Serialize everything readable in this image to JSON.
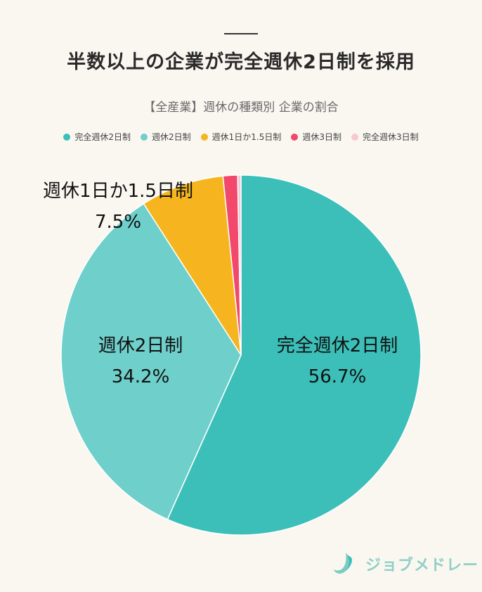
{
  "header": {
    "title": "半数以上の企業が完全週休2日制を採用",
    "subtitle": "【全産業】週休の種類別 企業の割合"
  },
  "chart_data": {
    "type": "pie",
    "categories": [
      "完全週休2日制",
      "週休2日制",
      "週休1日か1.5日制",
      "週休3日制",
      "完全週休3日制"
    ],
    "values": [
      56.7,
      34.2,
      7.5,
      1.3,
      0.3
    ],
    "value_labels": [
      "56.7%",
      "34.2%",
      "7.5%",
      "",
      ""
    ],
    "colors": [
      "#3bbfb8",
      "#6fcfca",
      "#f6b51e",
      "#f1486c",
      "#f7c8d2"
    ],
    "legend": "top",
    "start_angle_deg": 0,
    "direction": "clockwise"
  },
  "logo": {
    "text": "ジョブメドレー",
    "icon": "job-medley-logo-icon",
    "color": "#8fd0c8"
  }
}
